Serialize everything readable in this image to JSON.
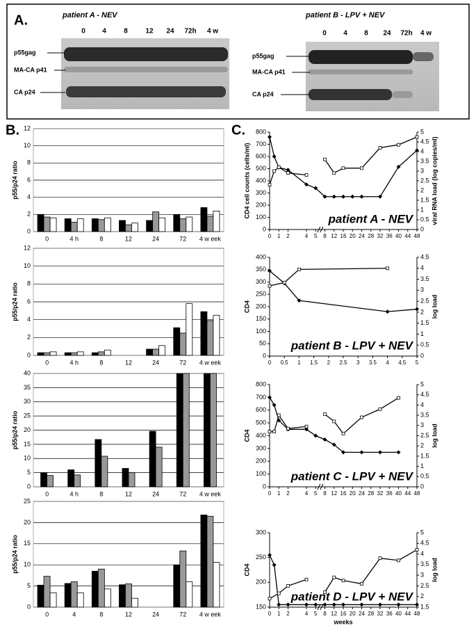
{
  "panel_a": {
    "label": "A.",
    "patient_a": {
      "title": "patient A - NEV",
      "lanes": [
        "0",
        "4",
        "8",
        "12",
        "24",
        "72h",
        "4 w"
      ],
      "bands": [
        "p55gag",
        "MA-CA p41",
        "CA p24"
      ]
    },
    "patient_b": {
      "title": "patient B - LPV + NEV",
      "lanes": [
        "0",
        "4",
        "8",
        "24",
        "72h",
        "4 w"
      ],
      "bands": [
        "p55gag",
        "MA-CA p41",
        "CA p24"
      ]
    }
  },
  "labels": {
    "b": "B.",
    "c": "C."
  },
  "chart_data": [
    {
      "type": "bar",
      "y_label": "p55/p24 ratio",
      "categories": [
        "0",
        "4 h",
        "8",
        "12",
        "24",
        "72",
        "4 w eek"
      ],
      "ylim": [
        0,
        12
      ],
      "yticks": [
        0,
        2,
        4,
        6,
        8,
        10,
        12
      ],
      "grid": true,
      "series": [
        {
          "color": "#000000",
          "values": [
            2,
            1.5,
            1.5,
            1.3,
            1.3,
            2,
            2.8
          ]
        },
        {
          "color": "#999999",
          "values": [
            1.7,
            1.1,
            1.4,
            0.8,
            2.3,
            1.5,
            1.8
          ]
        },
        {
          "color": "#ffffff",
          "values": [
            1.6,
            1.5,
            1.6,
            1.0,
            1.6,
            1.7,
            2.4
          ]
        }
      ]
    },
    {
      "type": "bar",
      "y_label": "p55/p24 ratio",
      "categories": [
        "0",
        "4 h",
        "8",
        "12",
        "24",
        "72",
        "4 w eek"
      ],
      "ylim": [
        0,
        12
      ],
      "yticks": [
        0,
        2,
        4,
        6,
        8,
        10,
        12
      ],
      "grid": true,
      "series": [
        {
          "color": "#000000",
          "values": [
            0.3,
            0.3,
            0.3,
            null,
            0.7,
            3.1,
            4.9
          ]
        },
        {
          "color": "#999999",
          "values": [
            0.3,
            0.3,
            0.4,
            null,
            0.7,
            2.5,
            3.9
          ]
        },
        {
          "color": "#ffffff",
          "values": [
            0.4,
            0.4,
            0.6,
            null,
            1.1,
            5.8,
            4.5
          ]
        }
      ]
    },
    {
      "type": "bar",
      "y_label": "p55/p24 ratio",
      "categories": [
        "0",
        "4 h",
        "8",
        "12",
        "24",
        "72",
        "4 w eek"
      ],
      "ylim": [
        0,
        40
      ],
      "yticks": [
        0,
        5,
        10,
        15,
        20,
        25,
        30,
        35,
        40
      ],
      "grid": true,
      "series": [
        {
          "color": "#000000",
          "values": [
            5,
            6,
            16.7,
            6.5,
            19.6,
            40,
            40
          ]
        },
        {
          "color": "#999999",
          "values": [
            4,
            4.2,
            10.8,
            5,
            14,
            40,
            40
          ]
        }
      ]
    },
    {
      "type": "bar",
      "y_label": "p55/p24 ratio",
      "categories": [
        "0",
        "4",
        "8",
        "12",
        "24",
        "72",
        "4 w eek"
      ],
      "ylim": [
        0,
        25
      ],
      "yticks": [
        0,
        5,
        10,
        15,
        20,
        25
      ],
      "grid": true,
      "series": [
        {
          "color": "#000000",
          "values": [
            5.2,
            5.6,
            8.5,
            5.3,
            null,
            10,
            21.8
          ]
        },
        {
          "color": "#999999",
          "values": [
            7.3,
            6,
            9,
            5.5,
            null,
            13.3,
            21.5
          ]
        },
        {
          "color": "#ffffff",
          "values": [
            3.4,
            3.4,
            4.3,
            2.1,
            null,
            6,
            10.6
          ]
        }
      ]
    },
    {
      "type": "line",
      "y_label": "CD4 cell counts (cells/ml)",
      "y2_label": "viral RNA load (log copies/ml)",
      "annotation": "patient A - NEV",
      "xlim": [
        0,
        48
      ],
      "xbreak": [
        5,
        8
      ],
      "xticks": [
        0,
        1,
        2,
        4,
        5,
        8,
        12,
        16,
        20,
        24,
        28,
        32,
        36,
        40,
        44,
        48
      ],
      "ylim": [
        0,
        800
      ],
      "yticks": [
        0,
        100,
        200,
        300,
        400,
        500,
        600,
        700,
        800
      ],
      "y2lim": [
        0,
        5
      ],
      "y2ticks": [
        0,
        0.5,
        1,
        1.5,
        2,
        2.5,
        3,
        3.5,
        4,
        4.5,
        5
      ],
      "series": [
        {
          "color": "#000000",
          "marker": "diamond",
          "axis": "y",
          "x": [
            0,
            0.5,
            1,
            2,
            4,
            5,
            8,
            12,
            16,
            20,
            24,
            32,
            40,
            48
          ],
          "values": [
            760,
            600,
            510,
            490,
            370,
            340,
            270,
            270,
            270,
            270,
            270,
            270,
            515,
            650
          ]
        },
        {
          "color": "#000000",
          "marker": "square",
          "axis": "y2",
          "x": [
            0,
            0.5,
            1,
            2,
            4,
            5,
            8,
            12,
            16,
            24,
            32,
            40,
            48
          ],
          "values": [
            2.3,
            3.0,
            3.2,
            2.9,
            2.8,
            null,
            3.6,
            2.9,
            3.15,
            3.15,
            4.2,
            4.35,
            4.75
          ]
        }
      ]
    },
    {
      "type": "line",
      "y_label": "CD4",
      "y2_label": "log load",
      "annotation": "patient B - LPV + NEV",
      "xlim": [
        0,
        5
      ],
      "xticks": [
        0,
        0.5,
        1,
        1.5,
        2,
        2.5,
        3,
        3.5,
        4,
        4.5,
        5
      ],
      "ylim": [
        0,
        400
      ],
      "yticks": [
        0,
        50,
        100,
        150,
        200,
        250,
        300,
        350,
        400
      ],
      "y2lim": [
        0,
        4.5
      ],
      "y2ticks": [
        0,
        0.5,
        1,
        1.5,
        2,
        2.5,
        3,
        3.5,
        4,
        4.5
      ],
      "series": [
        {
          "color": "#000000",
          "marker": "diamond",
          "axis": "y",
          "x": [
            0,
            0.5,
            1,
            4,
            5
          ],
          "values": [
            345,
            295,
            225,
            180,
            190
          ]
        },
        {
          "color": "#000000",
          "marker": "square",
          "axis": "y2",
          "x": [
            0,
            0.5,
            1,
            4
          ],
          "values": [
            3.2,
            3.35,
            3.95,
            4.0
          ]
        }
      ]
    },
    {
      "type": "line",
      "y_label": "CD4",
      "y2_label": "log load",
      "annotation": "patient C - LPV + NEV",
      "xlim": [
        0,
        48
      ],
      "xbreak": [
        5,
        8
      ],
      "xticks": [
        0,
        1,
        2,
        4,
        5,
        8,
        12,
        16,
        20,
        24,
        28,
        32,
        36,
        40,
        44,
        48
      ],
      "ylim": [
        0,
        800
      ],
      "yticks": [
        0,
        100,
        200,
        300,
        400,
        500,
        600,
        700,
        800
      ],
      "y2lim": [
        0,
        5
      ],
      "y2ticks": [
        0,
        0.5,
        1,
        1.5,
        2,
        2.5,
        3,
        3.5,
        4,
        4.5,
        5
      ],
      "series": [
        {
          "color": "#000000",
          "marker": "diamond",
          "axis": "y",
          "x": [
            0,
            0.5,
            1,
            2,
            4,
            5,
            8,
            12,
            16,
            24,
            32,
            40
          ],
          "values": [
            700,
            640,
            520,
            450,
            450,
            400,
            370,
            330,
            270,
            270,
            270,
            270
          ]
        },
        {
          "color": "#000000",
          "marker": "square",
          "axis": "y2",
          "x": [
            0,
            0.5,
            1,
            2,
            4,
            5,
            8,
            12,
            16,
            24,
            32,
            40
          ],
          "values": [
            2.7,
            2.7,
            3.5,
            2.85,
            2.95,
            null,
            3.55,
            3.2,
            2.6,
            3.4,
            3.8,
            4.35
          ]
        }
      ]
    },
    {
      "type": "line",
      "y_label": "CD4",
      "y2_label": "log load",
      "x_label": "weeks",
      "annotation": "patient D - LPV + NEV",
      "xlim": [
        0,
        48
      ],
      "xbreak": [
        5,
        8
      ],
      "xticks": [
        0,
        1,
        2,
        4,
        5,
        8,
        12,
        16,
        20,
        24,
        28,
        32,
        36,
        40,
        44,
        48
      ],
      "ylim": [
        150,
        300
      ],
      "yticks": [
        150,
        200,
        250,
        300
      ],
      "y2lim": [
        1.5,
        5
      ],
      "y2ticks": [
        1.5,
        2,
        2.5,
        3,
        3.5,
        4,
        4.5,
        5
      ],
      "series": [
        {
          "color": "#000000",
          "marker": "diamond",
          "axis": "y",
          "x": [
            0,
            0.5,
            1,
            2,
            4,
            5,
            8,
            12,
            16,
            24,
            32,
            40,
            48
          ],
          "values": [
            255,
            235,
            155,
            155,
            155,
            155,
            155,
            155,
            155,
            155,
            155,
            155,
            155
          ]
        },
        {
          "color": "#000000",
          "marker": "square",
          "axis": "y2",
          "x": [
            0,
            1,
            2,
            4,
            5,
            8,
            12,
            16,
            24,
            32,
            40,
            48
          ],
          "values": [
            1.9,
            2.15,
            2.5,
            2.8,
            null,
            2.2,
            2.9,
            2.75,
            2.6,
            3.8,
            3.7,
            4.2
          ]
        }
      ]
    }
  ]
}
